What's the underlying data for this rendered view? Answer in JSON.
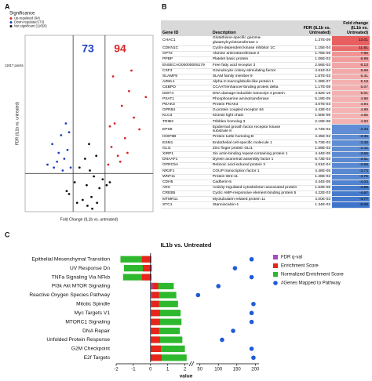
{
  "panel_labels": [
    "A",
    "B",
    "C"
  ],
  "chart_data": [
    {
      "type": "scatter",
      "x_label": "Fold Change (IL1b vs. untreated)",
      "y_label": "FDR (IL1b vs. untreated)",
      "legend_title": "Significance",
      "point_count_label": "11817 points",
      "annotations": [
        {
          "text": "73",
          "color": "#1f3fbf"
        },
        {
          "text": "94",
          "color": "#d62728"
        }
      ],
      "xlim": [
        -8,
        8
      ],
      "ylim": [
        0,
        6
      ],
      "vlines": [
        -2,
        2
      ],
      "hline": 1.3,
      "legend": "upper left",
      "series": [
        {
          "name": "Up-regulated (94)",
          "color": "#d62728",
          "x": [
            2.4,
            2.8,
            3.2,
            3.6,
            4.1,
            4.5,
            5.0,
            5.6,
            6.3,
            7.1,
            3.0,
            3.9,
            4.8,
            2.6,
            5.3
          ],
          "values": [
            1.6,
            2.2,
            3.0,
            1.9,
            3.6,
            2.5,
            4.1,
            3.2,
            2.8,
            3.9,
            4.6,
            1.7,
            2.0,
            2.9,
            4.8
          ]
        },
        {
          "name": "Down-regulated (73)",
          "color": "#1f3fbf",
          "x": [
            -2.3,
            -2.7,
            -3.1,
            -3.5,
            -4.0,
            -4.6,
            -5.2,
            -2.9,
            -3.8,
            -2.5,
            -4.4,
            -3.3
          ],
          "values": [
            1.5,
            2.1,
            1.8,
            2.6,
            1.7,
            2.3,
            1.6,
            3.0,
            2.0,
            2.7,
            1.5,
            1.4
          ]
        },
        {
          "name": "Not significant (11650)",
          "color": "#111111",
          "x": [
            -2.5,
            -1.8,
            -1.2,
            -0.8,
            -0.5,
            -0.2,
            0,
            0.3,
            0.6,
            0.9,
            1.3,
            1.7,
            2.2,
            -1.5,
            0.4,
            -0.3,
            1.0,
            2.6,
            -2.8,
            0.1
          ],
          "values": [
            0.6,
            1.0,
            1.5,
            0.4,
            1.8,
            0.2,
            2.3,
            0.5,
            1.2,
            1.9,
            0.8,
            1.1,
            0.9,
            0.3,
            0.1,
            0.9,
            0.3,
            1.0,
            0.7,
            1.4
          ]
        }
      ]
    },
    {
      "type": "bar_horizontal",
      "title": "IL1b vs. Untreated",
      "x_label": "value",
      "categories": [
        "Epithelial Mesenchymal Transition",
        "UV Response Dn",
        "TNFa Signaling Via NFkb",
        "PI3k Akt MTOR Signaling",
        "Reactive Oxygen Species Pathway",
        "Mitotic Spindle",
        "Myc Targets V1",
        "MTORC1 Signaling",
        "DNA Repair",
        "Unfolded Protein Response",
        "G2M Checkpoint",
        "E2f Targets"
      ],
      "xlim": [
        -2,
        2.2
      ],
      "xticks": [
        -2,
        -1,
        0,
        1,
        2
      ],
      "x2lim": [
        40,
        210
      ],
      "x2ticks": [
        50,
        100,
        150,
        200
      ],
      "legend": "upper right",
      "series": [
        {
          "name": "Normalized Enrichment Score",
          "color": "#2eb82e",
          "kind": "bar",
          "values": [
            -1.75,
            -1.55,
            -1.6,
            1.35,
            1.5,
            1.6,
            1.75,
            1.8,
            1.7,
            1.85,
            2.0,
            2.1
          ]
        },
        {
          "name": "Enrichment Score",
          "color": "#e8251b",
          "kind": "bar",
          "values": [
            -0.5,
            -0.45,
            -0.5,
            0.45,
            0.5,
            0.5,
            0.55,
            0.55,
            0.5,
            0.55,
            0.6,
            0.65
          ]
        },
        {
          "name": "FDR q-val",
          "color": "#a64ac9",
          "kind": "bar",
          "values": [
            0.05,
            0.08,
            0.06,
            0.12,
            0.1,
            0.08,
            0.05,
            0.05,
            0.06,
            0.05,
            0.03,
            0.02
          ]
        },
        {
          "name": "#Genes Mapped to Pathway",
          "color": "#1f5bd6",
          "kind": "dot",
          "axis": "x2",
          "values": [
            190,
            145,
            190,
            100,
            45,
            195,
            190,
            190,
            140,
            110,
            190,
            195
          ]
        }
      ],
      "legend_order": [
        2,
        1,
        0,
        3
      ]
    }
  ],
  "table": {
    "columns": [
      "Gene ID",
      "Description",
      "FDR (IL1b vs. Untreated)",
      "Fold change (IL1b vs. Untreated)"
    ],
    "rows": [
      [
        "CHAC1",
        "Glutathione-specific gamma-glutamylcyclotransferase 1",
        "1.37E-09",
        "13.01"
      ],
      [
        "CDKN1C",
        "Cyclin-dependent kinase inhibitor 1C",
        "1.15E-04",
        "11.61"
      ],
      [
        "GPT2",
        "Alanine aminotransferase 2",
        "1.76E-09",
        "7.90"
      ],
      [
        "PPBP",
        "Platelet basic protein",
        "1.06E-03",
        "6.99"
      ],
      [
        "ENSECAG00000005179",
        "Free fatty acid receptor 3",
        "2.56E-03",
        "6.13"
      ],
      [
        "CSF3",
        "Granulocyte colony-stimulating factor",
        "4.61E-04",
        "5.69"
      ],
      [
        "SLAMF9",
        "SLAM family member 9",
        "1.67E-03",
        "5.31"
      ],
      [
        "AZML1",
        "Alpha-2-macroglobulin-like protein 1",
        "1.28E-07",
        "5.18"
      ],
      [
        "CEBPD",
        "CCAAT/enhancer-binding protein delta",
        "1.17E-08",
        "5.07"
      ],
      [
        "DDIT4",
        "DNA damage-inducible transcript 4 protein",
        "4.92E-19",
        "5.01"
      ],
      [
        "PSAT1",
        "Phosphoserine aminotransferase",
        "5.19E-05",
        "4.96"
      ],
      [
        "PEAK3",
        "Protein PEAK3",
        "3.07E-03",
        "4.94"
      ],
      [
        "GPR84",
        "G-protein coupled receptor 84",
        "4.43E-04",
        "4.89"
      ],
      [
        "KLC3",
        "Kinesin light chain",
        "1.60E-05",
        "4.85"
      ],
      [
        "TRIB3",
        "Tribbles homolog 3",
        "2.19E-08",
        "4.83"
      ],
      [
        "EPS8",
        "Epidermal growth factor receptor kinase substrate 8",
        "2.74E-02",
        "-3.33"
      ],
      [
        "IGSF9B",
        "Protein turtle homolog B",
        "4.45E-02",
        "-3.35"
      ],
      [
        "ESM1",
        "Endothelial cell-specific molecule 1",
        "5.73E-03",
        "-3.38"
      ],
      [
        "GLI1",
        "Zinc finger protein GLI1",
        "1.59E-02",
        "-3.42"
      ],
      [
        "XIRP1",
        "Xin actin-binding repeat-containing protein 1",
        "4.44E-05",
        "-3.56"
      ],
      [
        "DNAAF1",
        "Dynein axonemal assembly factor 1",
        "6.73E-03",
        "-3.61"
      ],
      [
        "GPRC5A",
        "Retinoic acid-induced protein 3",
        "4.51E-04",
        "-3.68"
      ],
      [
        "NR2F1",
        "COUP transcription factor 1",
        "4.48E-05",
        "-3.74"
      ],
      [
        "WNT11",
        "Protein Wnt-11",
        "1.28E-02",
        "-3.76"
      ],
      [
        "CDH5",
        "Cadherin-5",
        "4.44E-05",
        "-4.03"
      ],
      [
        "ARC",
        "Activity-regulated cytoskeleton-associated protein",
        "1.53E-05",
        "-4.59"
      ],
      [
        "CREB5",
        "Cyclic AMP-responsive element-binding protein 5",
        "4.22E-03",
        "-4.67"
      ],
      [
        "MTMR11",
        "Myotubularin-related protein 11",
        "4.00E-03",
        "-4.77"
      ],
      [
        "STC1",
        "Stanniocalcin-1",
        "1.34E-02",
        "-5.00"
      ]
    ]
  }
}
